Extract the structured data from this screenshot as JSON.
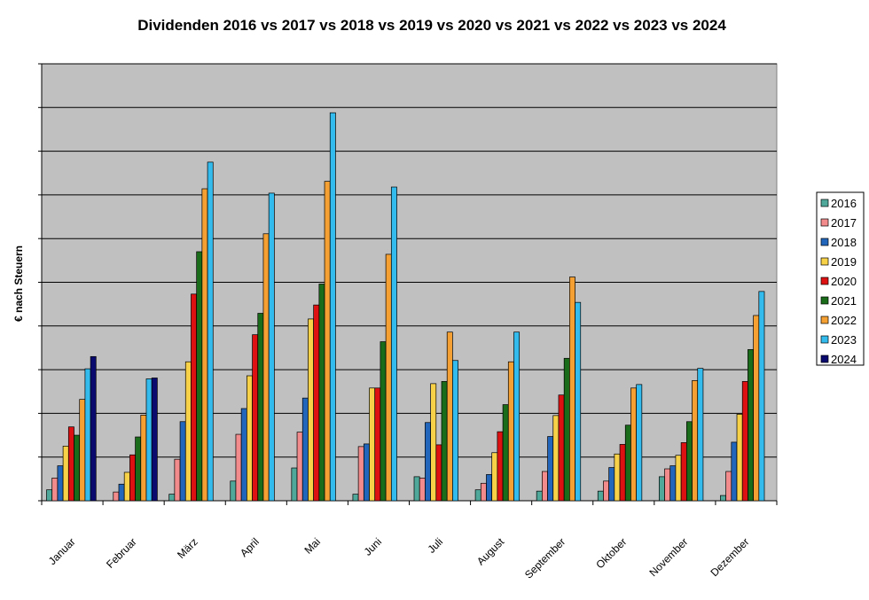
{
  "chart_data": {
    "type": "bar",
    "title": "Dividenden 2016 vs 2017 vs 2018 vs 2019 vs 2020 vs 2021 vs 2022 vs 2023 vs 2024",
    "xlabel": "",
    "ylabel": "€ nach Steuern",
    "ylim": [
      0,
      10
    ],
    "grid": true,
    "legend_position": "right",
    "categories": [
      "Januar",
      "Februar",
      "März",
      "April",
      "Mai",
      "Juni",
      "Juli",
      "August",
      "September",
      "Oktober",
      "November",
      "Dezember"
    ],
    "series": [
      {
        "name": "2016",
        "color": "#4FA89A",
        "values": [
          0.25,
          0,
          0.15,
          0.45,
          0.75,
          0.15,
          0.55,
          0.25,
          0.22,
          0.22,
          0.55,
          0.12
        ]
      },
      {
        "name": "2017",
        "color": "#F28B8B",
        "values": [
          0.52,
          0.2,
          0.95,
          1.52,
          1.57,
          1.24,
          0.52,
          0.4,
          0.67,
          0.45,
          0.73,
          0.67
        ]
      },
      {
        "name": "2018",
        "color": "#2266BB",
        "values": [
          0.8,
          0.38,
          1.81,
          2.11,
          2.35,
          1.3,
          1.79,
          0.6,
          1.47,
          0.76,
          0.8,
          1.34
        ]
      },
      {
        "name": "2019",
        "color": "#F7D148",
        "values": [
          1.25,
          0.65,
          3.18,
          2.86,
          4.16,
          2.58,
          2.68,
          1.1,
          1.95,
          1.07,
          1.04,
          1.98
        ]
      },
      {
        "name": "2020",
        "color": "#DD1111",
        "values": [
          1.69,
          1.05,
          4.73,
          3.8,
          4.48,
          2.58,
          1.28,
          1.58,
          2.42,
          1.29,
          1.33,
          2.73
        ]
      },
      {
        "name": "2021",
        "color": "#1A6B1A",
        "values": [
          1.5,
          1.46,
          5.7,
          4.29,
          4.96,
          3.64,
          2.73,
          2.2,
          3.26,
          1.73,
          1.81,
          3.46
        ]
      },
      {
        "name": "2022",
        "color": "#F4A033",
        "values": [
          2.32,
          1.96,
          7.14,
          6.11,
          7.31,
          5.64,
          3.86,
          3.18,
          5.12,
          2.58,
          2.75,
          4.24
        ]
      },
      {
        "name": "2023",
        "color": "#33BBEE",
        "values": [
          3.02,
          2.79,
          7.75,
          7.04,
          8.88,
          7.18,
          3.21,
          3.86,
          4.54,
          2.66,
          3.03,
          4.79
        ]
      },
      {
        "name": "2024",
        "color": "#0A0A6E",
        "values": [
          3.3,
          2.81,
          null,
          null,
          null,
          null,
          null,
          null,
          null,
          null,
          null,
          null
        ]
      }
    ]
  }
}
